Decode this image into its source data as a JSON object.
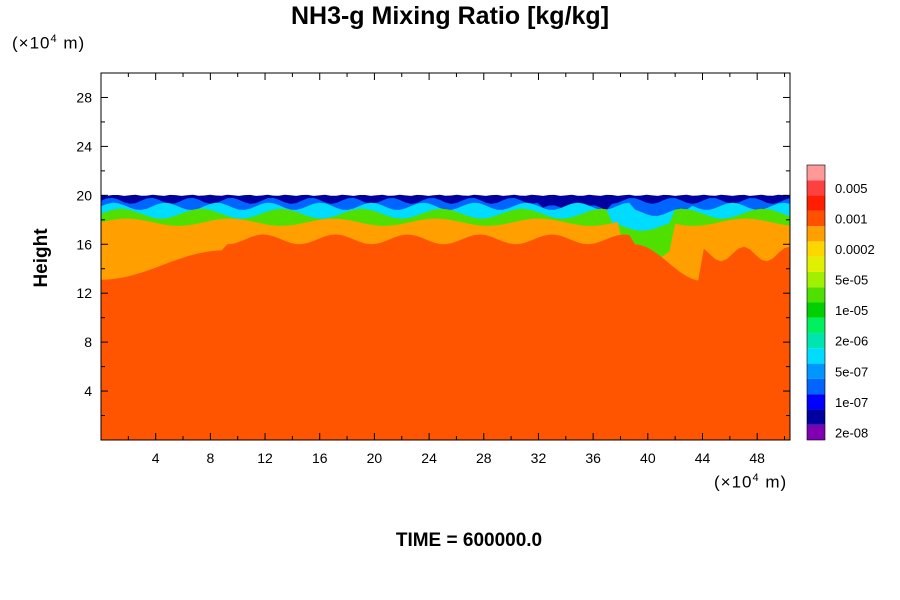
{
  "chart_data": {
    "type": "heatmap",
    "title": "NH3-g Mixing Ratio [kg/kg]",
    "ylabel": "Height",
    "xlabel": "",
    "x_scale_label": {
      "prefix": "(×10",
      "exponent": "4",
      "suffix": " m)"
    },
    "y_scale_label": {
      "prefix": "(×10",
      "exponent": "4",
      "suffix": " m)"
    },
    "xlim": [
      0,
      50.4
    ],
    "ylim": [
      0,
      30
    ],
    "x_ticks": [
      "4",
      "8",
      "12",
      "16",
      "20",
      "24",
      "28",
      "32",
      "36",
      "40",
      "44",
      "48"
    ],
    "y_ticks": [
      "4",
      "8",
      "12",
      "16",
      "20",
      "24",
      "28"
    ],
    "colorbar": {
      "levels": [
        {
          "color": "#7f00b0",
          "label": "2e-08"
        },
        {
          "color": "#0000a0",
          "label": ""
        },
        {
          "color": "#0000ff",
          "label": "1e-07"
        },
        {
          "color": "#0064ff",
          "label": ""
        },
        {
          "color": "#0096ff",
          "label": "5e-07"
        },
        {
          "color": "#00dcff",
          "label": ""
        },
        {
          "color": "#00e4b0",
          "label": "2e-06"
        },
        {
          "color": "#00f060",
          "label": ""
        },
        {
          "color": "#00d000",
          "label": "1e-05"
        },
        {
          "color": "#50e000",
          "label": ""
        },
        {
          "color": "#a0f000",
          "label": "5e-05"
        },
        {
          "color": "#e0f000",
          "label": ""
        },
        {
          "color": "#ffd700",
          "label": "0.0002"
        },
        {
          "color": "#ffa000",
          "label": ""
        },
        {
          "color": "#ff5000",
          "label": "0.001"
        },
        {
          "color": "#ff1e00",
          "label": ""
        },
        {
          "color": "#ff4040",
          "label": "0.005"
        },
        {
          "color": "#ff9999",
          "label": ""
        }
      ]
    },
    "field": {
      "main_color": "#ff5500",
      "main_top_height": 13,
      "orange_band_color": "#ffa000",
      "orange_band_top": 18,
      "green_layer_color": "#50e000",
      "cyan_layer_color": "#00dcff",
      "blue_layer_color": "#0064ff",
      "top_layer_color": "#0000a0",
      "cloud_top_height": 20
    }
  },
  "footer": "TIME = 600000.0"
}
